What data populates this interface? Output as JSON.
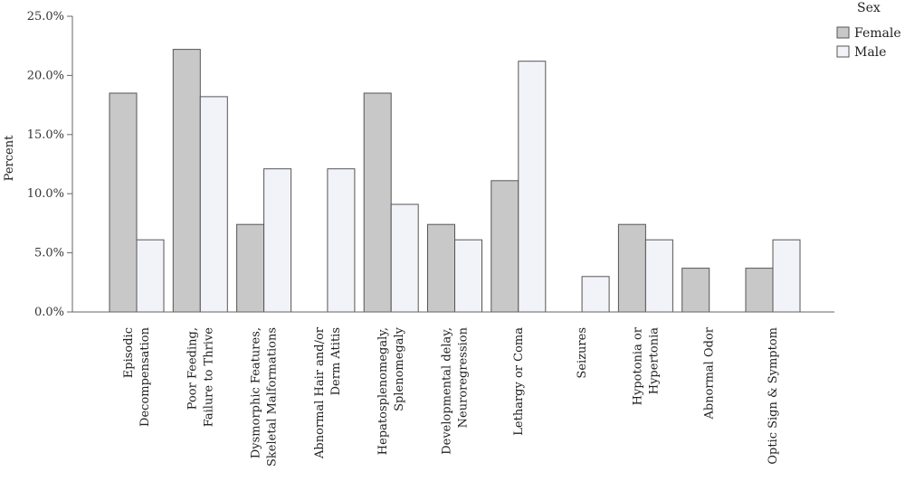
{
  "chart_data": {
    "type": "bar",
    "ylabel": "Percent",
    "ylim": [
      0,
      25
    ],
    "yticks": [
      0,
      5,
      10,
      15,
      20,
      25
    ],
    "ytick_labels": [
      "0.0%",
      "5.0%",
      "10.0%",
      "15.0%",
      "20.0%",
      "25.0%"
    ],
    "categories": [
      [
        "Episodic",
        "Decompensation"
      ],
      [
        "Poor Feeding,",
        "Failure to Thrive"
      ],
      [
        "Dysmorphic Features,",
        "Skeletal Malformations"
      ],
      [
        "Abnormal Hair and/or",
        "Derm Atitis"
      ],
      [
        "Hepatosplenomegaly,",
        "Splenomegaly"
      ],
      [
        "Developmental delay,",
        "Neuroregression"
      ],
      [
        "Lethargy or Coma"
      ],
      [
        "Seizures"
      ],
      [
        "Hypotonia or",
        "Hypertonia"
      ],
      [
        "Abnormal Odor"
      ],
      [
        "Optic Sign & Symptom"
      ]
    ],
    "legend": {
      "title": "Sex",
      "placement": "top-right"
    },
    "series": [
      {
        "name": "Female",
        "color": "#c8c8c8",
        "values": [
          18.5,
          22.2,
          7.4,
          0,
          18.5,
          7.4,
          11.1,
          0,
          7.4,
          3.7,
          3.7
        ]
      },
      {
        "name": "Male",
        "color": "#f2f3f8",
        "values": [
          6.1,
          18.2,
          12.1,
          12.1,
          9.1,
          6.1,
          21.2,
          3.0,
          6.1,
          0,
          6.1
        ]
      }
    ],
    "grid": false
  }
}
